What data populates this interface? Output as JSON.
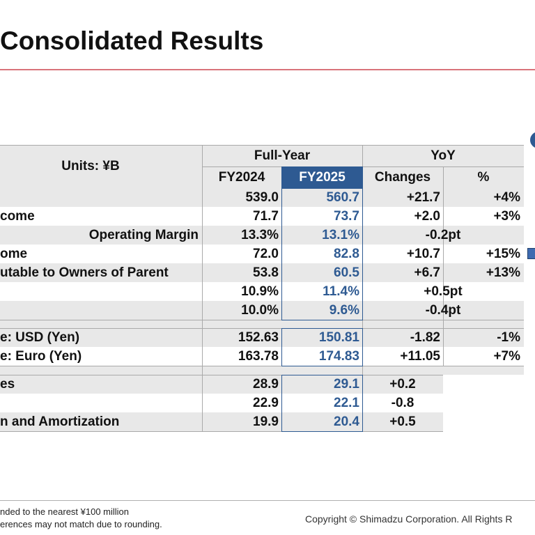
{
  "title": "Consolidated Results",
  "table": {
    "units_label": "Units: ¥B",
    "group_full_year": "Full-Year",
    "group_yoy": "YoY",
    "col_fy2024": "FY2024",
    "col_fy2025": "FY2025",
    "col_changes": "Changes",
    "col_pct": "%",
    "rows": [
      {
        "label": "",
        "fy2024": "539.0",
        "fy2025": "560.7",
        "changes": "+21.7",
        "pct": "+4%"
      },
      {
        "label": "come",
        "fy2024": "71.7",
        "fy2025": "73.7",
        "changes": "+2.0",
        "pct": "+3%"
      },
      {
        "label": "Operating Margin",
        "fy2024": "13.3%",
        "fy2025": "13.1%",
        "changes": "-0.2pt",
        "pct": ""
      },
      {
        "label": "ome",
        "fy2024": "72.0",
        "fy2025": "82.8",
        "changes": "+10.7",
        "pct": "+15%"
      },
      {
        "label": "utable to Owners of Parent",
        "fy2024": "53.8",
        "fy2025": "60.5",
        "changes": "+6.7",
        "pct": "+13%"
      },
      {
        "label": "",
        "fy2024": "10.9%",
        "fy2025": "11.4%",
        "changes": "+0.5pt",
        "pct": ""
      },
      {
        "label": "",
        "fy2024": "10.0%",
        "fy2025": "9.6%",
        "changes": "-0.4pt",
        "pct": ""
      },
      {
        "label": "e: USD (Yen)",
        "fy2024": "152.63",
        "fy2025": "150.81",
        "changes": "-1.82",
        "pct": "-1%"
      },
      {
        "label": "e: Euro (Yen)",
        "fy2024": "163.78",
        "fy2025": "174.83",
        "changes": "+11.05",
        "pct": "+7%"
      },
      {
        "label": "es",
        "fy2024": "28.9",
        "fy2025": "29.1",
        "changes": "+0.2"
      },
      {
        "label": "",
        "fy2024": "22.9",
        "fy2025": "22.1",
        "changes": "-0.8"
      },
      {
        "label": "n and Amortization",
        "fy2024": "19.9",
        "fy2025": "20.4",
        "changes": "+0.5"
      }
    ]
  },
  "footnotes": {
    "line1": "nded to the nearest ¥100 million",
    "line2": "erences may not match due to rounding."
  },
  "copyright": "Copyright © Shimadzu Corporation. All Rights R"
}
